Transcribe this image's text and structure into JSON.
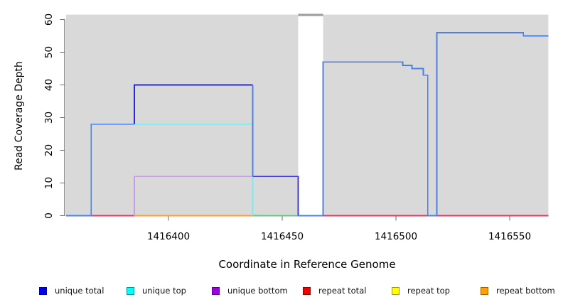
{
  "chart_data": {
    "type": "line",
    "title": "",
    "xlabel": "Coordinate in Reference Genome",
    "ylabel": "Read Coverage Depth",
    "xlim": [
      1416355,
      1416567
    ],
    "ylim": [
      0,
      61
    ],
    "x_ticks": [
      1416400,
      1416450,
      1416500,
      1416550
    ],
    "y_ticks": [
      0,
      10,
      20,
      30,
      40,
      50,
      60
    ],
    "grid": false,
    "legend_position": "bottom",
    "background_color": "#d9d9d9",
    "background_regions": [
      {
        "start": 1416355,
        "end": 1416457,
        "color": "#d9d9d9"
      },
      {
        "start": 1416468,
        "end": 1416567,
        "color": "#d9d9d9"
      }
    ],
    "clipped_marker": {
      "start": 1416457,
      "end": 1416468,
      "value": 61,
      "color": "#9e9e9e"
    },
    "series": [
      {
        "name": "repeat-total-left",
        "color": "#dc3a64",
        "points": [
          [
            1416355,
            0
          ],
          [
            1416385,
            0
          ]
        ]
      },
      {
        "name": "repeat-total-right",
        "color": "#dc3a64",
        "points": [
          [
            1416468,
            0
          ],
          [
            1416567,
            0
          ]
        ]
      },
      {
        "name": "repeat-bottom-zero",
        "color": "#ff9d30",
        "points": [
          [
            1416385,
            0
          ],
          [
            1416437,
            0
          ]
        ]
      },
      {
        "name": "top-strand-zero",
        "color": "#68c583",
        "points": [
          [
            1416437,
            0
          ],
          [
            1416457,
            0
          ]
        ]
      },
      {
        "name": "unique-bottom",
        "color": "#c79ee4",
        "points": [
          [
            1416385,
            0
          ],
          [
            1416385,
            12
          ],
          [
            1416437,
            12
          ]
        ]
      },
      {
        "name": "unique-top",
        "color": "#7aeaee",
        "points": [
          [
            1416385,
            28
          ],
          [
            1416437,
            28
          ],
          [
            1416437,
            0
          ]
        ]
      },
      {
        "name": "unique-total-left-dark",
        "color": "#2a28e2",
        "points": [
          [
            1416385,
            28
          ],
          [
            1416385,
            40
          ],
          [
            1416437,
            40
          ]
        ]
      },
      {
        "name": "unique-total-mid-dark",
        "color": "#403ae0",
        "points": [
          [
            1416437,
            12
          ],
          [
            1416457,
            12
          ],
          [
            1416457,
            0
          ]
        ]
      },
      {
        "name": "unique-total-royal-left",
        "color": "#4b80ea",
        "points": [
          [
            1416355,
            0
          ],
          [
            1416366,
            0
          ],
          [
            1416366,
            28
          ],
          [
            1416385,
            28
          ]
        ]
      },
      {
        "name": "unique-total-drop",
        "color": "#4b80ea",
        "points": [
          [
            1416437,
            40
          ],
          [
            1416437,
            12
          ]
        ]
      },
      {
        "name": "unique-total-gap",
        "color": "#4b80ea",
        "points": [
          [
            1416457,
            0
          ],
          [
            1416468,
            0
          ]
        ]
      },
      {
        "name": "unique-total-right",
        "color": "#4b80ea",
        "points": [
          [
            1416468,
            0
          ],
          [
            1416468,
            47
          ],
          [
            1416503,
            47
          ],
          [
            1416503,
            46
          ],
          [
            1416507,
            46
          ],
          [
            1416507,
            45
          ],
          [
            1416512,
            45
          ],
          [
            1416512,
            43
          ],
          [
            1416514,
            43
          ],
          [
            1416514,
            0
          ],
          [
            1416518,
            0
          ],
          [
            1416518,
            56
          ],
          [
            1416556,
            56
          ],
          [
            1416556,
            55
          ],
          [
            1416567,
            55
          ]
        ]
      }
    ],
    "legend": [
      {
        "label": "unique total",
        "color": "#0000f0",
        "border": "#0000a0"
      },
      {
        "label": "unique top",
        "color": "#00ffff",
        "border": "#009696"
      },
      {
        "label": "unique bottom",
        "color": "#9d00e8",
        "border": "#5a0080"
      },
      {
        "label": "repeat total",
        "color": "#f00000",
        "border": "#8f0000"
      },
      {
        "label": "repeat top",
        "color": "#ffff00",
        "border": "#9c9c00"
      },
      {
        "label": "repeat bottom",
        "color": "#ffa000",
        "border": "#a06000"
      }
    ]
  }
}
